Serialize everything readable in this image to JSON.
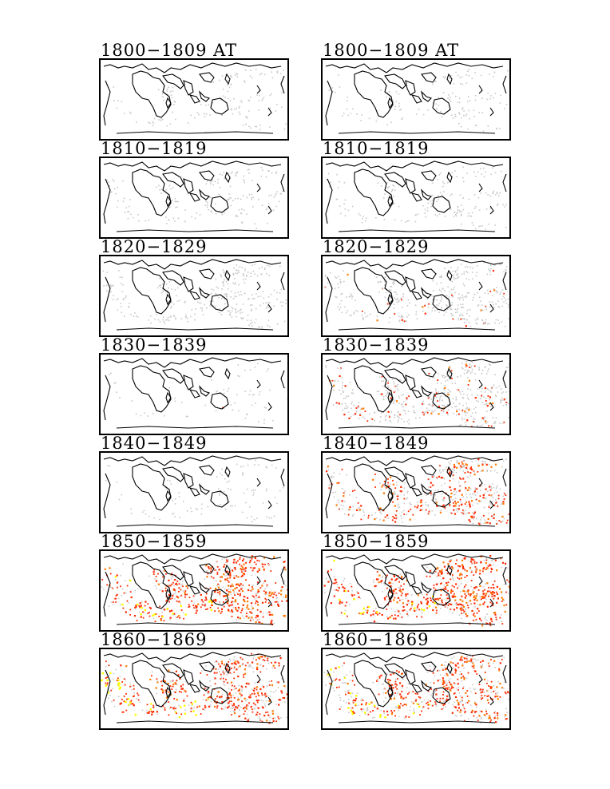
{
  "figure": {
    "columns": [
      "left",
      "right"
    ],
    "panels": [
      {
        "left_title": "1800−1809 AT",
        "right_title": "1800−1809 AT",
        "left_density": 0.2,
        "left_red": 0.0,
        "left_yellow": 0.0,
        "right_density": 0.2,
        "right_red": 0.0,
        "right_yellow": 0.0
      },
      {
        "left_title": "1810−1819",
        "right_title": "1810−1819",
        "left_density": 0.25,
        "left_red": 0.0,
        "left_yellow": 0.0,
        "right_density": 0.25,
        "right_red": 0.0,
        "right_yellow": 0.0
      },
      {
        "left_title": "1820−1829",
        "right_title": "1820−1829",
        "left_density": 0.45,
        "left_red": 0.0,
        "left_yellow": 0.0,
        "right_density": 0.55,
        "right_red": 0.05,
        "right_yellow": 0.0
      },
      {
        "left_title": "1830−1839",
        "right_title": "1830−1839",
        "left_density": 0.1,
        "left_red": 0.05,
        "left_yellow": 0.0,
        "right_density": 0.7,
        "right_red": 0.2,
        "right_yellow": 0.0
      },
      {
        "left_title": "1840−1849",
        "right_title": "1840−1849",
        "left_density": 0.15,
        "left_red": 0.0,
        "left_yellow": 0.0,
        "right_density": 0.75,
        "right_red": 0.45,
        "right_yellow": 0.0
      },
      {
        "left_title": "1850−1859",
        "right_title": "1850−1859",
        "left_density": 0.9,
        "left_red": 0.75,
        "left_yellow": 0.35,
        "right_density": 0.9,
        "right_red": 0.8,
        "right_yellow": 0.35
      },
      {
        "left_title": "1860−1869",
        "right_title": "1860−1869",
        "left_density": 0.85,
        "left_red": 0.6,
        "left_yellow": 0.4,
        "right_density": 0.85,
        "right_red": 0.6,
        "right_yellow": 0.4
      }
    ],
    "colors": {
      "frame": "#000000",
      "coast": "#000000",
      "low": "#c8c8c8",
      "mid": "#ff2a00",
      "high": "#ff7a00",
      "peak": "#ffff00"
    }
  }
}
